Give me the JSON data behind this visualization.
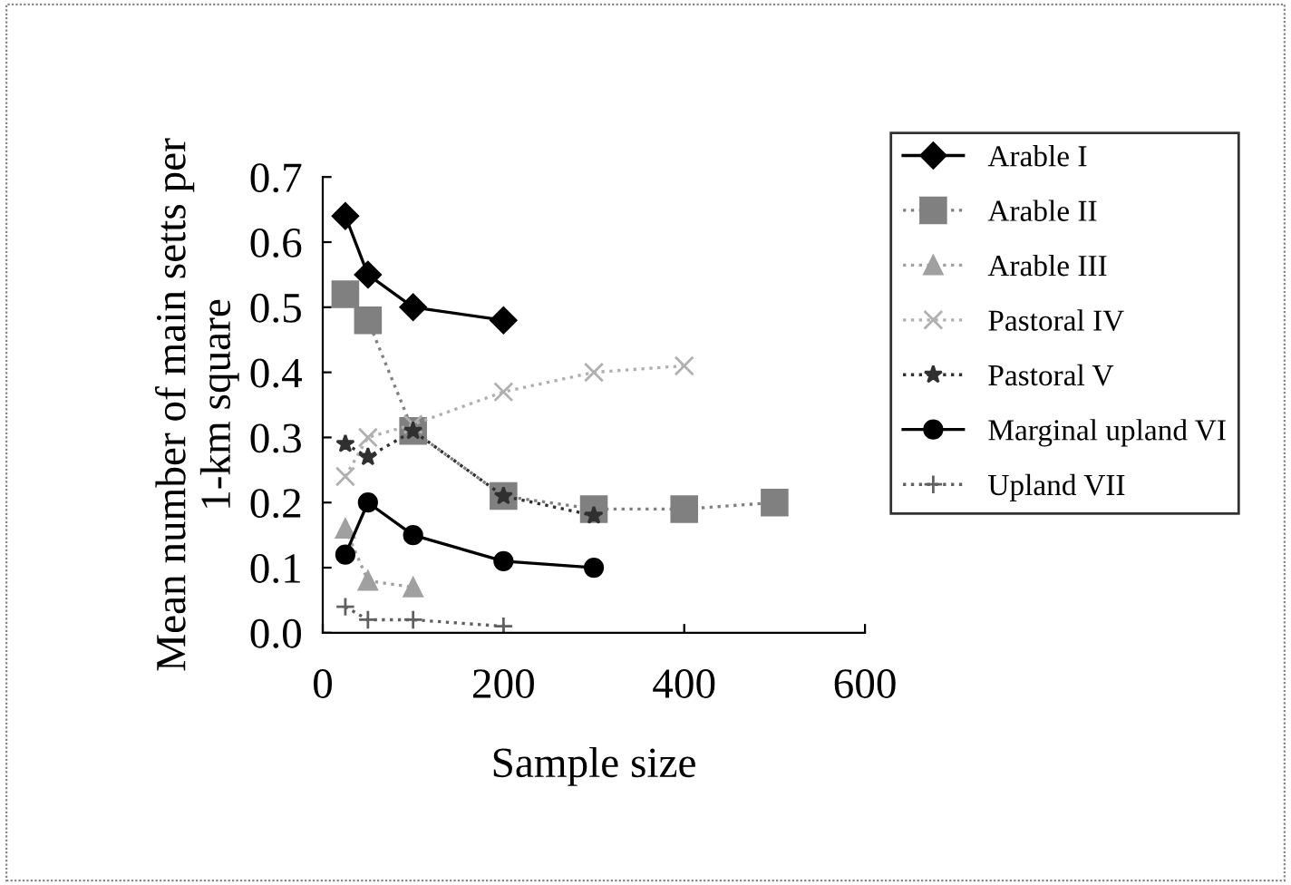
{
  "chart_data": {
    "type": "line",
    "xlabel": "Sample size",
    "ylabel": "Mean number of main setts per\n1-km square",
    "xlim": [
      0,
      600
    ],
    "xticks": [
      0,
      200,
      400,
      600
    ],
    "ylim": [
      0,
      0.7
    ],
    "yticks": [
      {
        "value": 0,
        "label": "0.0"
      },
      0.1,
      0.2,
      0.3,
      0.4,
      0.5,
      0.6,
      0.7
    ],
    "grid": false,
    "legend": "right",
    "series": [
      {
        "name": "Arable I",
        "color": "#000000",
        "marker": "diamond",
        "line_style": "solid",
        "x": [
          25,
          50,
          100,
          200
        ],
        "values": [
          0.64,
          0.55,
          0.5,
          0.48
        ]
      },
      {
        "name": "Arable II",
        "color": "#808080",
        "marker": "square",
        "line_style": "dotted",
        "x": [
          25,
          50,
          100,
          200,
          300,
          400,
          500
        ],
        "values": [
          0.52,
          0.48,
          0.31,
          0.21,
          0.19,
          0.19,
          0.2
        ]
      },
      {
        "name": "Arable III",
        "color": "#a0a0a0",
        "marker": "triangle",
        "line_style": "dotted",
        "x": [
          25,
          50,
          100
        ],
        "values": [
          0.16,
          0.08,
          0.07
        ]
      },
      {
        "name": "Pastoral IV",
        "color": "#b0b0b0",
        "marker": "cross",
        "line_style": "dotted",
        "x": [
          25,
          50,
          100,
          200,
          300,
          400
        ],
        "values": [
          0.24,
          0.3,
          0.32,
          0.37,
          0.4,
          0.41
        ]
      },
      {
        "name": "Pastoral V",
        "color": "#303030",
        "marker": "star",
        "line_style": "dotted",
        "x": [
          25,
          50,
          100,
          200,
          300
        ],
        "values": [
          0.29,
          0.27,
          0.31,
          0.21,
          0.18
        ]
      },
      {
        "name": "Marginal upland VI",
        "color": "#000000",
        "marker": "circle",
        "line_style": "solid",
        "x": [
          25,
          50,
          100,
          200,
          300
        ],
        "values": [
          0.12,
          0.2,
          0.15,
          0.11,
          0.1
        ]
      },
      {
        "name": "Upland VII",
        "color": "#606060",
        "marker": "plus",
        "line_style": "dotted",
        "x": [
          25,
          50,
          100,
          200
        ],
        "values": [
          0.04,
          0.02,
          0.02,
          0.01
        ]
      }
    ]
  }
}
